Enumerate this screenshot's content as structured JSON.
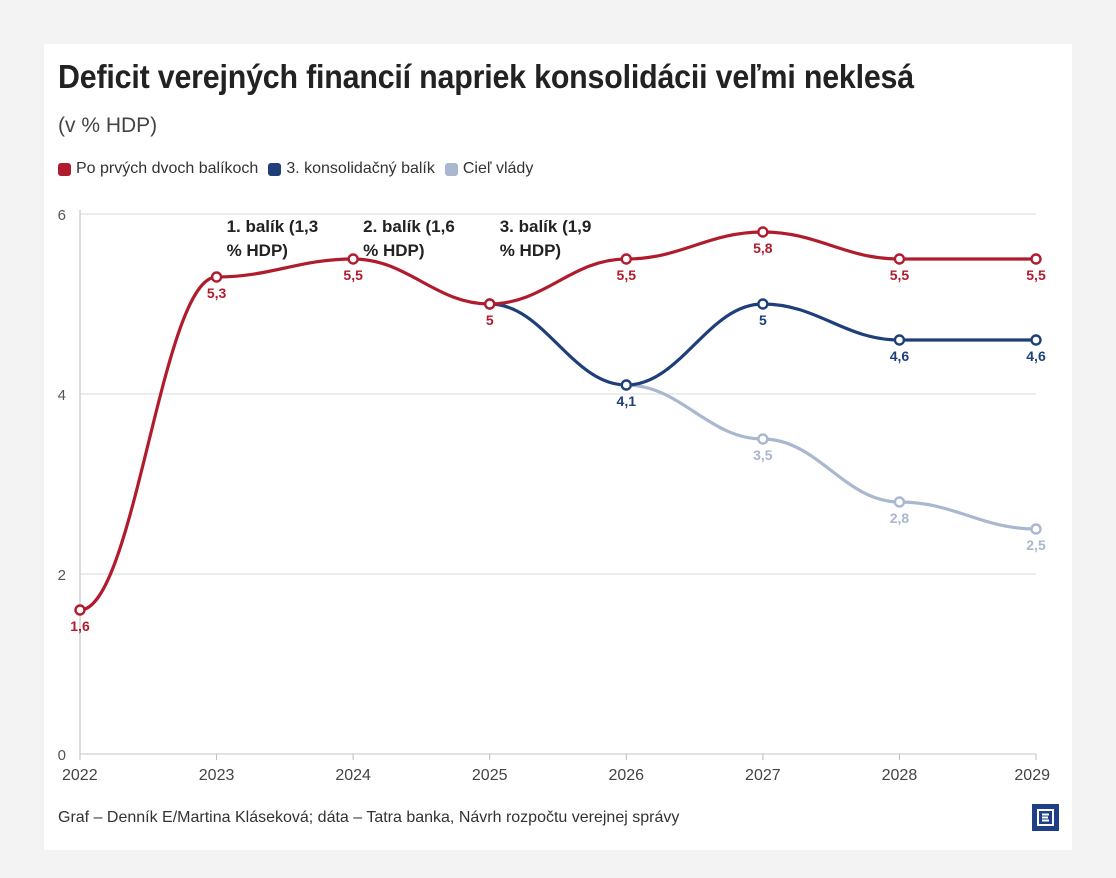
{
  "header": {
    "title": "Deficit verejných financií napriek konsolidácii veľmi neklesá",
    "subtitle": "(v % HDP)"
  },
  "footer": {
    "source": "Graf – Denník E/Martina Kláseková; dáta – Tatra banka, Návrh rozpočtu verejnej správy"
  },
  "logo": {
    "icon": "denik-e-logo-icon",
    "color": "#1f3f86"
  },
  "chart_data": {
    "type": "line",
    "title": "Deficit verejných financií napriek konsolidácii veľmi neklesá",
    "subtitle": "(v % HDP)",
    "x": [
      "2022",
      "2023",
      "2024",
      "2025",
      "2026",
      "2027",
      "2028",
      "2029"
    ],
    "ylim": [
      0,
      6
    ],
    "yticks": [
      "0",
      "2",
      "4",
      "6"
    ],
    "grid": true,
    "legend_placement": "top-left",
    "series": [
      {
        "name": "Po prvých dvoch balíkoch",
        "color": "#b01c2e",
        "x": [
          "2022",
          "2023",
          "2024",
          "2025",
          "2026",
          "2027",
          "2028",
          "2029"
        ],
        "values": [
          1.6,
          5.3,
          5.5,
          5,
          5.5,
          5.8,
          5.5,
          5.5
        ],
        "labels": [
          "1,6",
          "5,3",
          "5,5",
          "5",
          "5,5",
          "5,8",
          "5,5",
          "5,5"
        ]
      },
      {
        "name": "3. konsolidačný balík",
        "color": "#1f3f7a",
        "x": [
          "2025",
          "2026",
          "2027",
          "2028",
          "2029"
        ],
        "values": [
          5,
          4.1,
          5,
          4.6,
          4.6
        ],
        "labels": [
          "",
          "4,1",
          "5",
          "4,6",
          "4,6"
        ]
      },
      {
        "name": "Cieľ vlády",
        "color": "#a9b7cf",
        "x": [
          "2026",
          "2027",
          "2028",
          "2029"
        ],
        "values": [
          4.1,
          3.5,
          2.8,
          2.5
        ],
        "labels": [
          "",
          "3,5",
          "2,8",
          "2,5"
        ]
      }
    ],
    "annotations": [
      {
        "x": "2023",
        "lines": [
          "1. balík (1,3",
          "% HDP)"
        ]
      },
      {
        "x": "2024",
        "lines": [
          "2. balík (1,6",
          "% HDP)"
        ]
      },
      {
        "x": "2025",
        "lines": [
          "3. balík (1,9",
          "% HDP)"
        ]
      }
    ]
  }
}
